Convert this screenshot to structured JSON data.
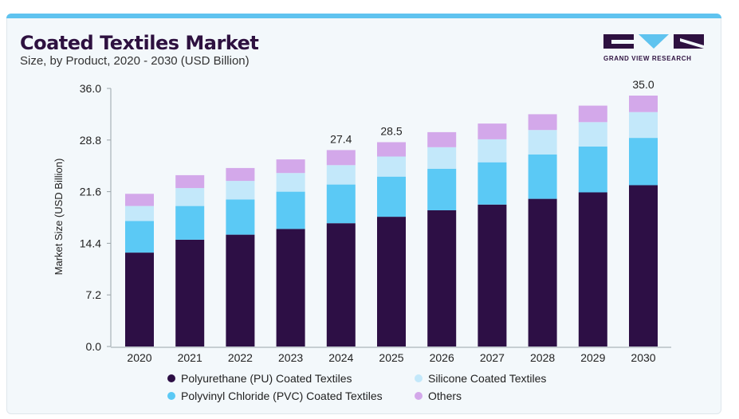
{
  "header": {
    "title": "Coated Textiles Market",
    "subtitle": "Size, by Product, 2020 - 2030 (USD Billion)"
  },
  "logo": {
    "text": "GRAND VIEW RESEARCH"
  },
  "colors": {
    "pu": "#2d0f45",
    "pvc": "#5bc9f5",
    "silicone": "#c3e8fa",
    "others": "#d3a8ea",
    "brand": "#2e1140",
    "accent": "#5fc3ef"
  },
  "chart_data": {
    "type": "bar",
    "stacked": true,
    "categories": [
      "2020",
      "2021",
      "2022",
      "2023",
      "2024",
      "2025",
      "2026",
      "2027",
      "2028",
      "2029",
      "2030"
    ],
    "series": [
      {
        "name": "Polyurethane (PU) Coated Textiles",
        "values": [
          13.1,
          14.9,
          15.6,
          16.4,
          17.2,
          18.1,
          19.0,
          19.8,
          20.6,
          21.5,
          22.5
        ]
      },
      {
        "name": "Polyvinyl Chloride (PVC) Coated Textiles",
        "values": [
          4.4,
          4.7,
          4.9,
          5.2,
          5.4,
          5.6,
          5.8,
          5.9,
          6.2,
          6.4,
          6.6
        ]
      },
      {
        "name": "Silicone Coated Textiles",
        "values": [
          2.1,
          2.5,
          2.6,
          2.6,
          2.7,
          2.8,
          3.0,
          3.2,
          3.4,
          3.4,
          3.6
        ]
      },
      {
        "name": "Others",
        "values": [
          1.7,
          1.8,
          1.8,
          1.9,
          2.1,
          2.0,
          2.1,
          2.2,
          2.2,
          2.3,
          2.3
        ]
      }
    ],
    "data_labels": [
      {
        "category": "2024",
        "text": "27.4"
      },
      {
        "category": "2025",
        "text": "28.5"
      },
      {
        "category": "2030",
        "text": "35.0"
      }
    ],
    "ylabel": "Market Size (USD Billion)",
    "xlabel": "",
    "yticks": [
      "0.0",
      "7.2",
      "14.4",
      "21.6",
      "28.8",
      "36.0"
    ],
    "ylim": [
      0,
      36
    ],
    "grid": false,
    "legend_position": "bottom"
  }
}
